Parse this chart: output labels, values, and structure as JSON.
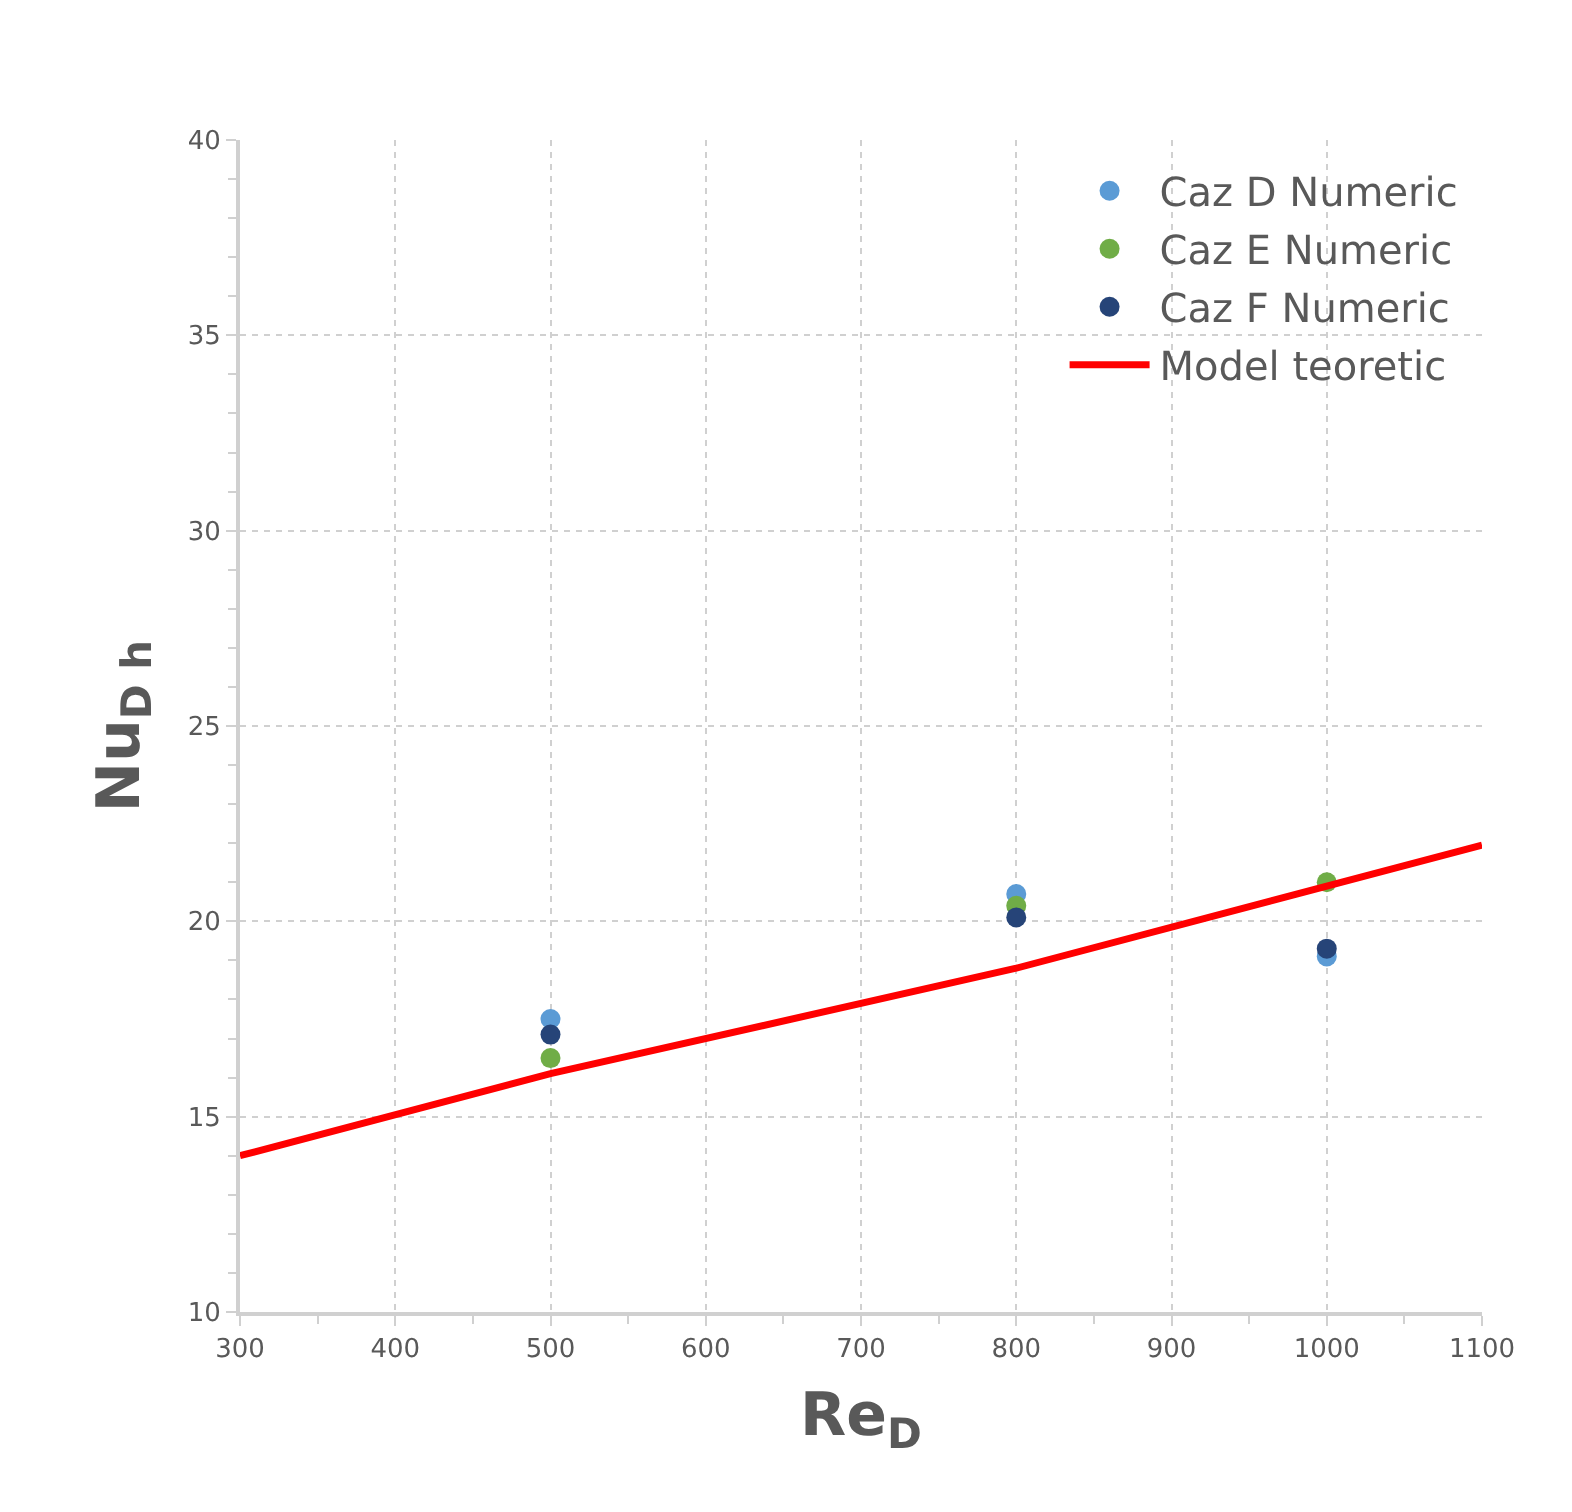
{
  "chart_data": {
    "type": "scatter",
    "xlabel": "Re$_{D}$",
    "ylabel": "Nu$_{D h}$",
    "xlim": [
      300,
      1100
    ],
    "xticks": [
      300,
      400,
      500,
      600,
      700,
      800,
      900,
      1000,
      1100
    ],
    "ylim": [
      10,
      40
    ],
    "yticks": [
      10,
      15,
      20,
      25,
      30,
      35,
      40
    ],
    "grid": true,
    "legend": "top right",
    "series": [
      {
        "name": "Caz D Numeric",
        "color": "#5b9bd5",
        "marker": "circle",
        "x": [
          500,
          800,
          1000
        ],
        "values": [
          17.5,
          20.7,
          19.1
        ]
      },
      {
        "name": "Caz E Numeric",
        "color": "#70ad47",
        "marker": "circle",
        "x": [
          500,
          800,
          1000
        ],
        "values": [
          16.5,
          20.4,
          21.0
        ]
      },
      {
        "name": "Caz F Numeric",
        "color": "#264478",
        "marker": "circle",
        "x": [
          500,
          800,
          1000
        ],
        "values": [
          17.1,
          20.1,
          19.3
        ]
      },
      {
        "name": "Model teoretic",
        "type": "line",
        "color": "#ff0000",
        "line_style": "solid",
        "marker": "none",
        "x": [
          300,
          500,
          800,
          1100
        ],
        "values": [
          14.0,
          16.1,
          18.8,
          21.95
        ]
      }
    ]
  }
}
